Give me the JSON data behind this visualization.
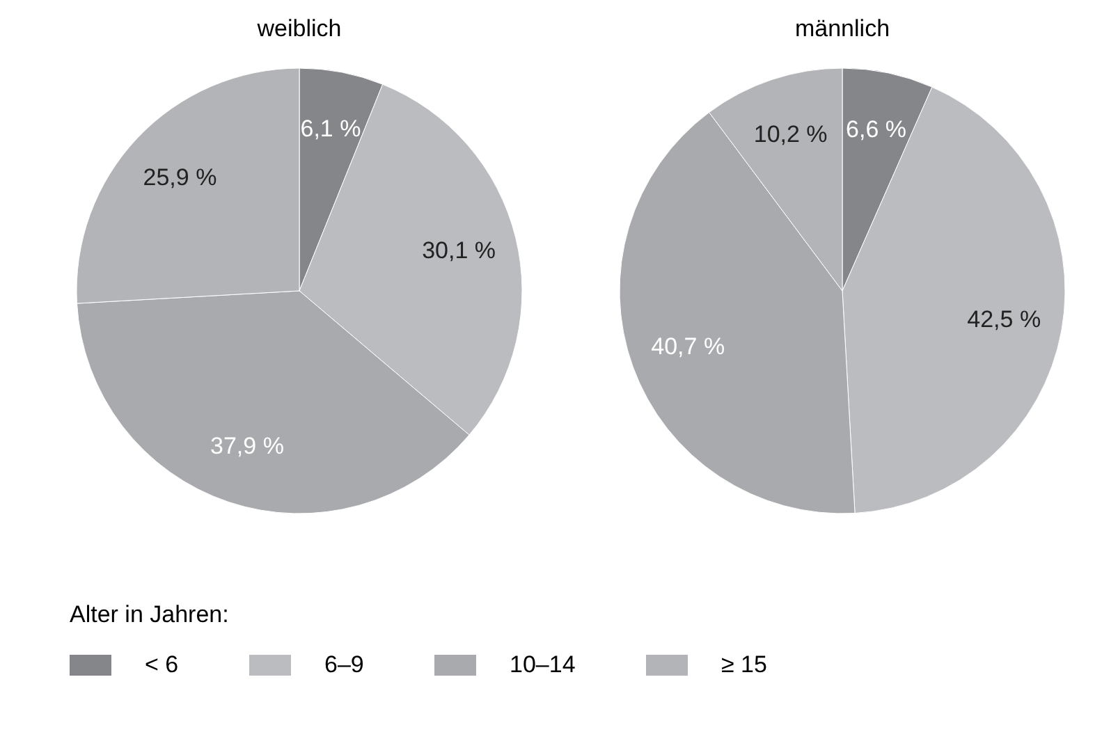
{
  "chart_data": [
    {
      "type": "pie",
      "title": "weiblich",
      "categories": [
        "< 6",
        "6–9",
        "10–14",
        "≥ 15"
      ],
      "values": [
        6.1,
        30.1,
        37.9,
        25.9
      ],
      "value_labels": [
        "6,1 %",
        "30,1 %",
        "37,9 %",
        "25,9 %"
      ],
      "colors": [
        "#85868a",
        "#bbbcc0",
        "#a9aaae",
        "#b3b4b8"
      ],
      "legend": "bottom",
      "legend_title": "Alter in Jahren:"
    },
    {
      "type": "pie",
      "title": "männlich",
      "categories": [
        null,
        null,
        null,
        null
      ],
      "values": [
        6.6,
        42.5,
        40.7,
        10.2
      ],
      "value_labels": [
        "6,6 %",
        "42,5 %",
        "40,7 %",
        "10,2 %"
      ],
      "colors": [
        "#85868a",
        "#bbbcc0",
        "#a9aaae",
        "#b3b4b8"
      ]
    }
  ]
}
